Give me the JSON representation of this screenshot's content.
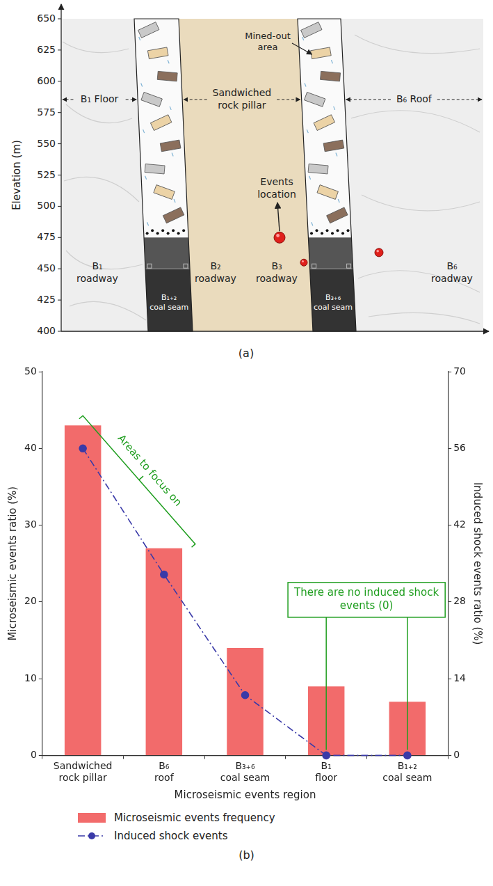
{
  "diagram": {
    "label": "(a)",
    "y_axis": {
      "title": "Elevation (m)",
      "ylim": [
        400,
        650
      ],
      "yticks": [
        400,
        425,
        450,
        475,
        500,
        525,
        550,
        575,
        600,
        625,
        650
      ]
    },
    "seam_top": 475,
    "roadway_level": 450,
    "regions": {
      "floor": "B₁ Floor",
      "pillar": "Sandwiched rock pillar",
      "roof": "B₆ Roof",
      "mined_out": "Mined-out area"
    },
    "roadways": [
      "B₁ roadway",
      "B₂ roadway",
      "B₃ roadway",
      "B₆ roadway"
    ],
    "coal_seams": [
      "B₁₊₂ coal seam",
      "B₃₊₆ coal seam"
    ],
    "events": {
      "label": "Events location",
      "elevations": [
        475,
        455,
        463
      ]
    }
  },
  "chart_data": {
    "type": "bar",
    "label": "(b)",
    "x_label": "Microseismic events region",
    "categories": [
      "Sandwiched rock pillar",
      "B₆ roof",
      "B₃₊₆ coal seam",
      "B₁ floor",
      "B₁₊₂ coal seam"
    ],
    "series": [
      {
        "name": "Microseismic events frequency",
        "type": "bar",
        "color": "#f26b6b",
        "axis": "y",
        "values": [
          43,
          27,
          14,
          9,
          7
        ]
      },
      {
        "name": "Induced shock events",
        "type": "line",
        "color": "#3a3aa8",
        "axis": "y2",
        "line_style": "dashdot",
        "marker": "circle",
        "values": [
          56,
          33,
          11,
          0,
          0
        ]
      }
    ],
    "y_label": "Microseismic events ratio (%)",
    "ylim": [
      0,
      50
    ],
    "yticks": [
      0,
      10,
      20,
      30,
      40,
      50
    ],
    "y2_label": "Induced shock events ratio (%)",
    "y2lim": [
      0,
      70
    ],
    "y2ticks": [
      0,
      14,
      28,
      42,
      56,
      70
    ],
    "grid": false,
    "legend": "bottom",
    "annotations": [
      {
        "text": "Areas to focus on",
        "categories": [
          "Sandwiched rock pillar",
          "B₆ roof"
        ]
      },
      {
        "text": "There are no induced shock events (0)",
        "categories": [
          "B₁ floor",
          "B₁₊₂ coal seam"
        ]
      }
    ]
  }
}
